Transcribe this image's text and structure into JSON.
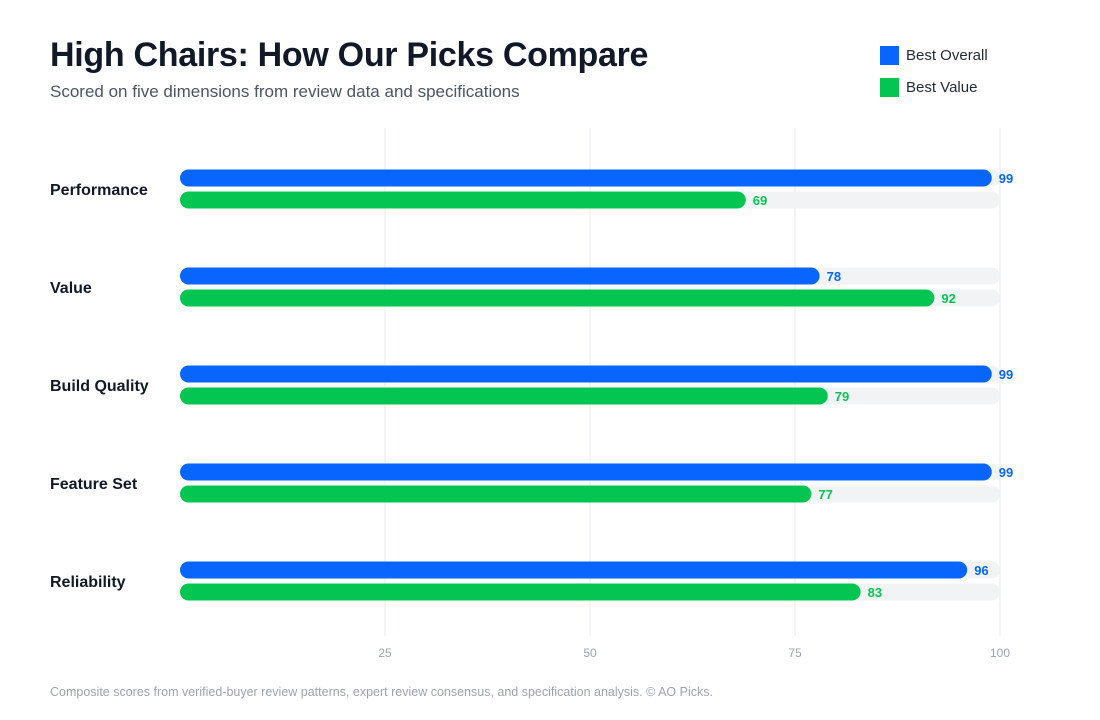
{
  "header": {
    "title": "High Chairs: How Our Picks Compare",
    "subtitle": "Scored on five dimensions from review data and specifications"
  },
  "legend": [
    {
      "label": "Best Overall",
      "color": "#0866ff"
    },
    {
      "label": "Best Value",
      "color": "#05c552"
    }
  ],
  "chart_data": {
    "type": "bar",
    "orientation": "horizontal",
    "categories": [
      "Performance",
      "Value",
      "Build Quality",
      "Feature Set",
      "Reliability"
    ],
    "series": [
      {
        "name": "Best Overall",
        "color": "#0866ff",
        "values": [
          99,
          78,
          99,
          99,
          96
        ]
      },
      {
        "name": "Best Value",
        "color": "#05c552",
        "values": [
          69,
          92,
          79,
          77,
          83
        ]
      }
    ],
    "xlim": [
      0,
      100
    ],
    "xticks": [
      25,
      50,
      75,
      100
    ],
    "grid": true,
    "legend_position": "top-right",
    "data_labels": true
  },
  "footnote": "Composite scores from verified-buyer review patterns, expert review consensus, and specification analysis. © AO Picks."
}
